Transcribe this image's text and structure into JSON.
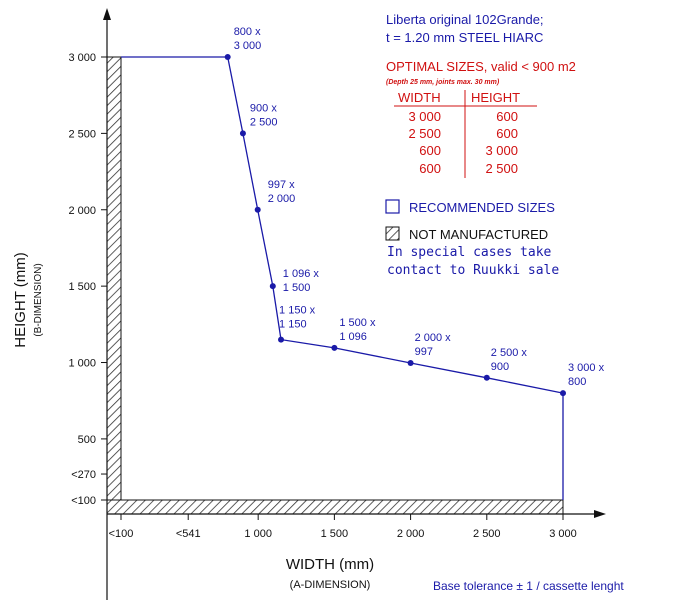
{
  "chart_data": {
    "type": "line",
    "series": [
      {
        "name": "Recommended sizes",
        "points": [
          {
            "width": 800,
            "height": 3000,
            "label_w": "800 x",
            "label_h": "3 000"
          },
          {
            "width": 900,
            "height": 2500,
            "label_w": "900 x",
            "label_h": "2 500"
          },
          {
            "width": 997,
            "height": 2000,
            "label_w": "997 x",
            "label_h": "2 000"
          },
          {
            "width": 1096,
            "height": 1500,
            "label_w": "1 096 x",
            "label_h": "1 500"
          },
          {
            "width": 1150,
            "height": 1150,
            "label_w": "1 150 x",
            "label_h": "1 150"
          },
          {
            "width": 1500,
            "height": 1096,
            "label_w": "1 500 x",
            "label_h": "1 096"
          },
          {
            "width": 2000,
            "height": 997,
            "label_w": "2 000 x",
            "label_h": "997"
          },
          {
            "width": 2500,
            "height": 900,
            "label_w": "2 500 x",
            "label_h": "900"
          },
          {
            "width": 3000,
            "height": 800,
            "label_w": "3 000 x",
            "label_h": "800"
          }
        ]
      }
    ],
    "x_ticks": [
      {
        "value": 100,
        "label": "<100"
      },
      {
        "value": 541,
        "label": "<541"
      },
      {
        "value": 1000,
        "label": "1 000"
      },
      {
        "value": 1500,
        "label": "1 500"
      },
      {
        "value": 2000,
        "label": "2 000"
      },
      {
        "value": 2500,
        "label": "2 500"
      },
      {
        "value": 3000,
        "label": "3 000"
      }
    ],
    "y_ticks": [
      {
        "value": 100,
        "label": "<100"
      },
      {
        "value": 270,
        "label": "<270"
      },
      {
        "value": 500,
        "label": "500"
      },
      {
        "value": 1000,
        "label": "1 000"
      },
      {
        "value": 1500,
        "label": "1 500"
      },
      {
        "value": 2000,
        "label": "2 000"
      },
      {
        "value": 2500,
        "label": "2 500"
      },
      {
        "value": 3000,
        "label": "3 000"
      }
    ],
    "xlabel": "WIDTH (mm)",
    "xlabel_sub": "(A-DIMENSION)",
    "ylabel": "HEIGHT (mm)",
    "ylabel_sub": "(B-DIMENSION)",
    "grid": false,
    "not_manufactured_limit": 100
  },
  "info": {
    "title_line1": "Liberta original 102Grande;",
    "title_line2": "t = 1.20 mm STEEL HIARC",
    "optimal_title": "OPTIMAL SIZES, valid < 900 m2",
    "optimal_note": "(Depth 25 mm, joints max. 30 mm)",
    "table_headers": [
      "WIDTH",
      "HEIGHT"
    ],
    "table_rows": [
      [
        "3 000",
        "600"
      ],
      [
        "2 500",
        "600"
      ],
      [
        "600",
        "3 000"
      ],
      [
        "600",
        "2 500"
      ]
    ]
  },
  "legend": {
    "recommended": "RECOMMENDED SIZES",
    "not_manufactured": "NOT MANUFACTURED",
    "special_line1": "In special cases take",
    "special_line2": "contact to Ruukki sale"
  },
  "footer": {
    "tolerance": "Base tolerance ± 1 / cassette lenght"
  },
  "colors": {
    "line": "#1a1aa8",
    "red": "#d01010",
    "axis": "#111111"
  }
}
